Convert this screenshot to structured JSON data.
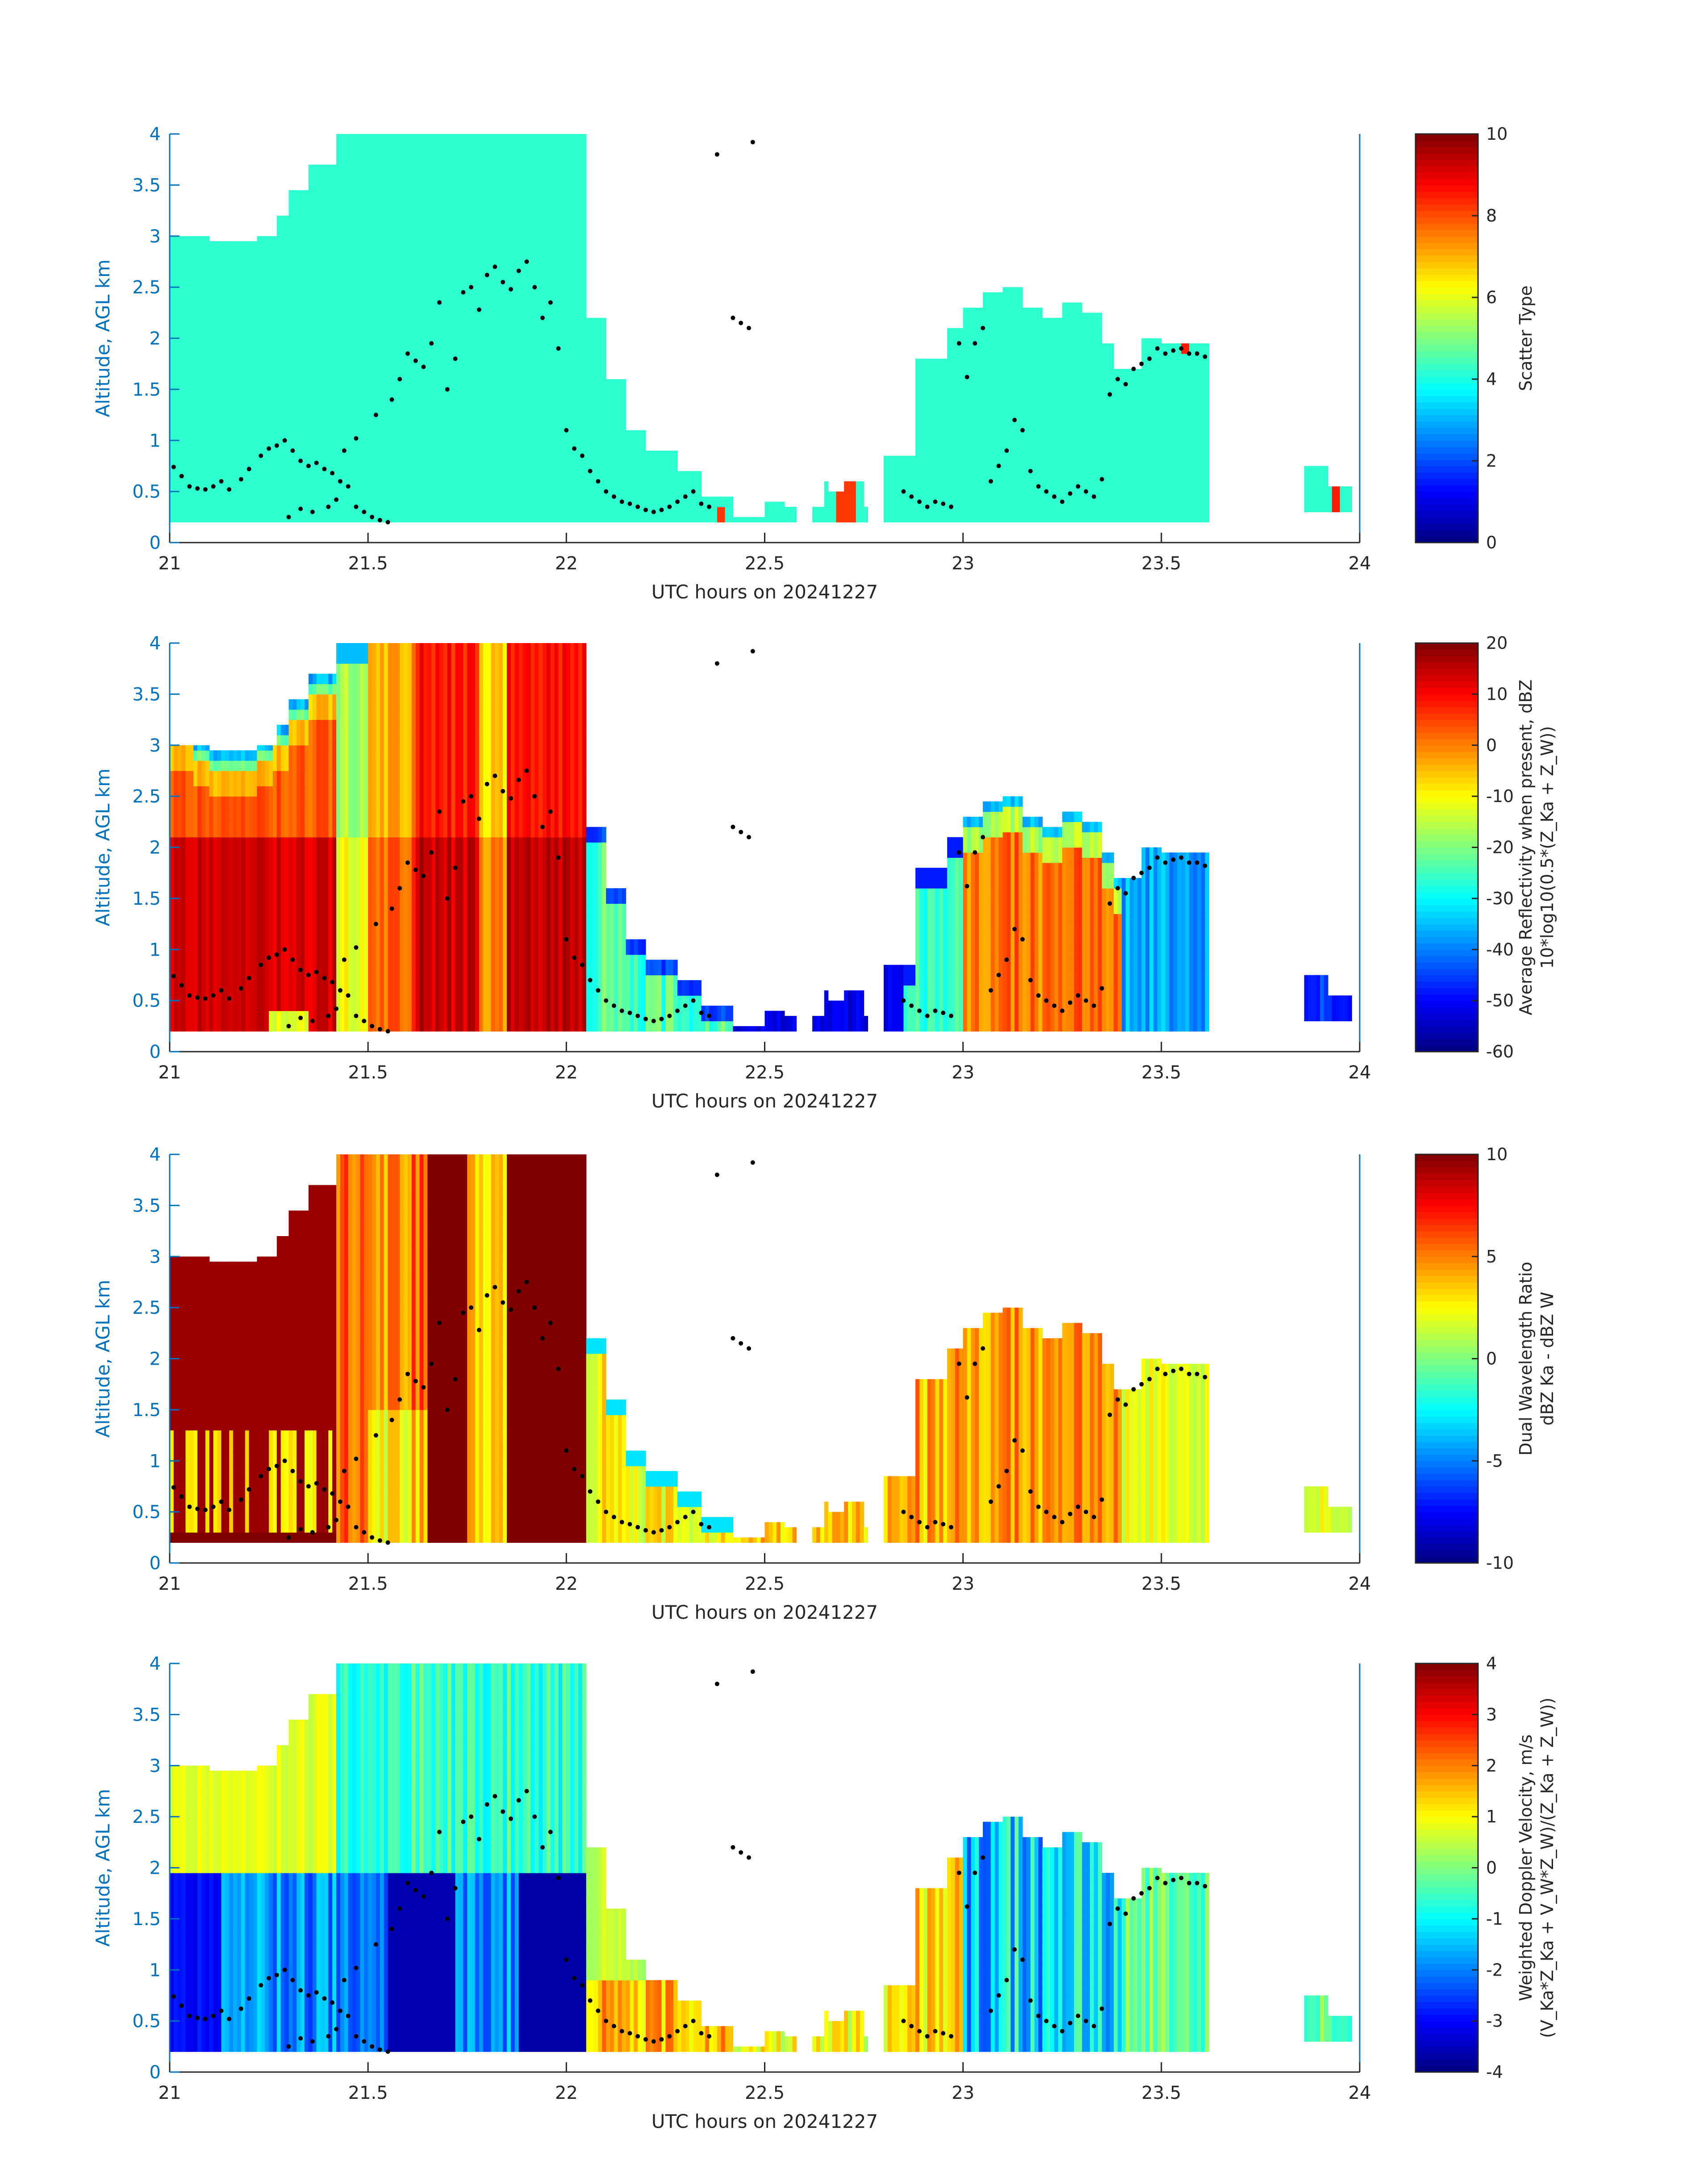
{
  "chart_data": [
    {
      "type": "heatmap",
      "xlabel": "UTC hours on 20241227",
      "ylabel": "Altitude, AGL km",
      "xlim": [
        21,
        24
      ],
      "ylim": [
        0,
        4
      ],
      "xticks": [
        "21",
        "21.5",
        "22",
        "22.5",
        "23",
        "23.5",
        "24"
      ],
      "yticks": [
        "0",
        "0.5",
        "1",
        "1.5",
        "2",
        "2.5",
        "3",
        "3.5",
        "4"
      ],
      "colorbar": {
        "label_lines": [
          "Scatter Type"
        ],
        "range": [
          0,
          10
        ],
        "ticks": [
          "0",
          "2",
          "4",
          "6",
          "8",
          "10"
        ]
      },
      "field": "scatter"
    },
    {
      "type": "heatmap",
      "xlabel": "UTC hours on 20241227",
      "ylabel": "Altitude, AGL km",
      "xlim": [
        21,
        24
      ],
      "ylim": [
        0,
        4
      ],
      "xticks": [
        "21",
        "21.5",
        "22",
        "22.5",
        "23",
        "23.5",
        "24"
      ],
      "yticks": [
        "0",
        "0.5",
        "1",
        "1.5",
        "2",
        "2.5",
        "3",
        "3.5",
        "4"
      ],
      "colorbar": {
        "label_lines": [
          "Average Reflectivity when present, dBZ",
          "10*log10(0.5*(Z_Ka + Z_W))"
        ],
        "range": [
          -60,
          20
        ],
        "ticks": [
          "-60",
          "-50",
          "-40",
          "-30",
          "-20",
          "-10",
          "0",
          "10",
          "20"
        ]
      },
      "field": "reflectivity"
    },
    {
      "type": "heatmap",
      "xlabel": "UTC hours on 20241227",
      "ylabel": "Altitude, AGL km",
      "xlim": [
        21,
        24
      ],
      "ylim": [
        0,
        4
      ],
      "xticks": [
        "21",
        "21.5",
        "22",
        "22.5",
        "23",
        "23.5",
        "24"
      ],
      "yticks": [
        "0",
        "0.5",
        "1",
        "1.5",
        "2",
        "2.5",
        "3",
        "3.5",
        "4"
      ],
      "colorbar": {
        "label_lines": [
          "Dual Wavelength Ratio",
          "dBZ Ka - dBZ W"
        ],
        "range": [
          -10,
          10
        ],
        "ticks": [
          "-10",
          "-5",
          "0",
          "5",
          "10"
        ]
      },
      "field": "dwr"
    },
    {
      "type": "heatmap",
      "xlabel": "UTC hours on 20241227",
      "ylabel": "Altitude, AGL km",
      "xlim": [
        21,
        24
      ],
      "ylim": [
        0,
        4
      ],
      "xticks": [
        "21",
        "21.5",
        "22",
        "22.5",
        "23",
        "23.5",
        "24"
      ],
      "yticks": [
        "0",
        "0.5",
        "1",
        "1.5",
        "2",
        "2.5",
        "3",
        "3.5",
        "4"
      ],
      "colorbar": {
        "label_lines": [
          "Weighted Doppler Velocity, m/s",
          "(V_Ka*Z_Ka + V_W*Z_W)/(Z_Ka + Z_W))"
        ],
        "range": [
          -4,
          4
        ],
        "ticks": [
          "-4",
          "-3",
          "-2",
          "-1",
          "0",
          "1",
          "2",
          "3",
          "4"
        ]
      },
      "field": "velocity"
    }
  ],
  "cloud_base_points": [
    [
      21.01,
      0.74
    ],
    [
      21.03,
      0.65
    ],
    [
      21.05,
      0.55
    ],
    [
      21.07,
      0.53
    ],
    [
      21.09,
      0.52
    ],
    [
      21.11,
      0.55
    ],
    [
      21.13,
      0.6
    ],
    [
      21.15,
      0.52
    ],
    [
      21.18,
      0.62
    ],
    [
      21.2,
      0.72
    ],
    [
      21.23,
      0.85
    ],
    [
      21.25,
      0.92
    ],
    [
      21.27,
      0.95
    ],
    [
      21.29,
      1.0
    ],
    [
      21.31,
      0.9
    ],
    [
      21.33,
      0.8
    ],
    [
      21.35,
      0.75
    ],
    [
      21.37,
      0.78
    ],
    [
      21.39,
      0.72
    ],
    [
      21.41,
      0.68
    ],
    [
      21.43,
      0.6
    ],
    [
      21.45,
      0.55
    ],
    [
      21.47,
      0.35
    ],
    [
      21.49,
      0.3
    ],
    [
      21.51,
      0.25
    ],
    [
      21.53,
      0.22
    ],
    [
      21.55,
      0.2
    ],
    [
      21.3,
      0.25
    ],
    [
      21.33,
      0.33
    ],
    [
      21.36,
      0.3
    ],
    [
      21.4,
      0.35
    ],
    [
      21.42,
      0.42
    ],
    [
      21.44,
      0.9
    ],
    [
      21.47,
      1.02
    ],
    [
      21.52,
      1.25
    ],
    [
      21.56,
      1.4
    ],
    [
      21.58,
      1.6
    ],
    [
      21.6,
      1.85
    ],
    [
      21.62,
      1.78
    ],
    [
      21.64,
      1.72
    ],
    [
      21.66,
      1.95
    ],
    [
      21.68,
      2.35
    ],
    [
      21.7,
      1.5
    ],
    [
      21.72,
      1.8
    ],
    [
      21.74,
      2.45
    ],
    [
      21.76,
      2.5
    ],
    [
      21.78,
      2.28
    ],
    [
      21.8,
      2.62
    ],
    [
      21.82,
      2.7
    ],
    [
      21.84,
      2.55
    ],
    [
      21.86,
      2.48
    ],
    [
      21.88,
      2.66
    ],
    [
      21.9,
      2.75
    ],
    [
      21.92,
      2.5
    ],
    [
      21.94,
      2.2
    ],
    [
      21.96,
      2.35
    ],
    [
      21.98,
      1.9
    ],
    [
      22.0,
      1.1
    ],
    [
      22.02,
      0.92
    ],
    [
      22.04,
      0.85
    ],
    [
      22.06,
      0.7
    ],
    [
      22.08,
      0.6
    ],
    [
      22.1,
      0.5
    ],
    [
      22.12,
      0.45
    ],
    [
      22.14,
      0.4
    ],
    [
      22.16,
      0.38
    ],
    [
      22.18,
      0.35
    ],
    [
      22.2,
      0.32
    ],
    [
      22.22,
      0.3
    ],
    [
      22.24,
      0.32
    ],
    [
      22.26,
      0.35
    ],
    [
      22.28,
      0.4
    ],
    [
      22.3,
      0.45
    ],
    [
      22.32,
      0.5
    ],
    [
      22.34,
      0.38
    ],
    [
      22.36,
      0.35
    ],
    [
      22.38,
      3.8
    ],
    [
      22.47,
      3.92
    ],
    [
      22.42,
      2.2
    ],
    [
      22.44,
      2.15
    ],
    [
      22.46,
      2.1
    ],
    [
      22.85,
      0.5
    ],
    [
      22.87,
      0.45
    ],
    [
      22.89,
      0.4
    ],
    [
      22.91,
      0.35
    ],
    [
      22.93,
      0.4
    ],
    [
      22.95,
      0.38
    ],
    [
      22.97,
      0.35
    ],
    [
      22.99,
      1.95
    ],
    [
      23.01,
      1.62
    ],
    [
      23.03,
      1.95
    ],
    [
      23.05,
      2.1
    ],
    [
      23.07,
      0.6
    ],
    [
      23.09,
      0.75
    ],
    [
      23.11,
      0.9
    ],
    [
      23.13,
      1.2
    ],
    [
      23.15,
      1.1
    ],
    [
      23.17,
      0.7
    ],
    [
      23.19,
      0.55
    ],
    [
      23.21,
      0.5
    ],
    [
      23.23,
      0.45
    ],
    [
      23.25,
      0.4
    ],
    [
      23.27,
      0.48
    ],
    [
      23.29,
      0.55
    ],
    [
      23.31,
      0.5
    ],
    [
      23.33,
      0.45
    ],
    [
      23.35,
      0.62
    ],
    [
      23.37,
      1.45
    ],
    [
      23.39,
      1.6
    ],
    [
      23.41,
      1.55
    ],
    [
      23.43,
      1.7
    ],
    [
      23.45,
      1.75
    ],
    [
      23.47,
      1.8
    ],
    [
      23.49,
      1.9
    ],
    [
      23.51,
      1.85
    ],
    [
      23.53,
      1.88
    ],
    [
      23.55,
      1.9
    ],
    [
      23.57,
      1.85
    ],
    [
      23.59,
      1.85
    ],
    [
      23.61,
      1.82
    ]
  ]
}
